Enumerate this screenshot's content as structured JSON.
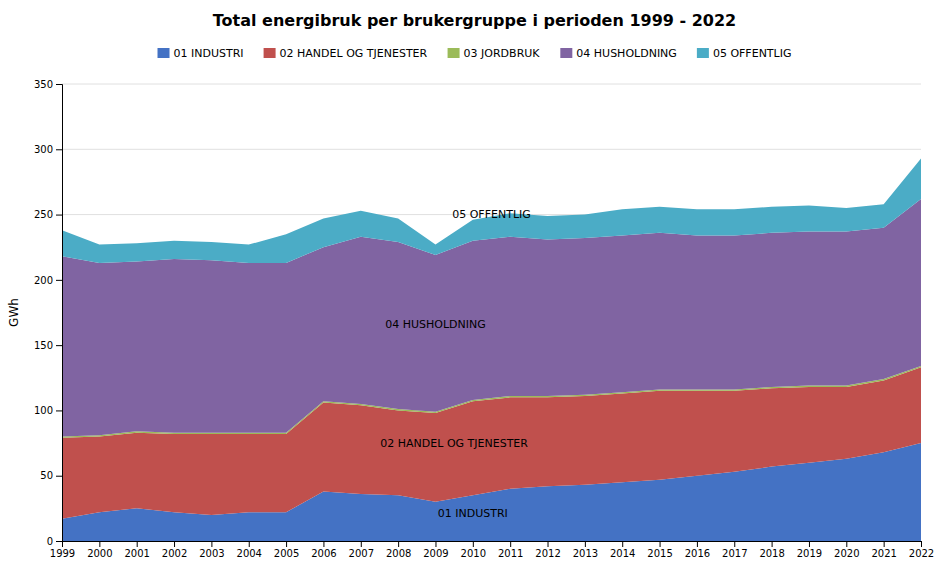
{
  "chart_data": {
    "type": "area",
    "stacked": true,
    "title": "Total energibruk per brukergruppe i perioden 1999 - 2022",
    "ylabel": "GWh",
    "x": [
      1999,
      2000,
      2001,
      2002,
      2003,
      2004,
      2005,
      2006,
      2007,
      2008,
      2009,
      2010,
      2011,
      2012,
      2013,
      2014,
      2015,
      2016,
      2017,
      2018,
      2019,
      2020,
      2021,
      2022
    ],
    "series": [
      {
        "name": "01 INDUSTRI",
        "color": "#4472C4",
        "values": [
          17,
          22,
          25,
          22,
          20,
          22,
          22,
          38,
          36,
          35,
          30,
          35,
          40,
          42,
          43,
          45,
          47,
          50,
          53,
          57,
          60,
          63,
          68,
          75
        ]
      },
      {
        "name": "02 HANDEL OG TJENESTER",
        "color": "#C0504D",
        "values": [
          62,
          58,
          58,
          60,
          62,
          60,
          60,
          68,
          68,
          65,
          68,
          72,
          70,
          68,
          68,
          68,
          68,
          65,
          62,
          60,
          58,
          55,
          55,
          58
        ]
      },
      {
        "name": "03 JORDBRUK",
        "color": "#9BBB59",
        "values": [
          1,
          1,
          1,
          1,
          1,
          1,
          1,
          1,
          1,
          1,
          1,
          1,
          1,
          1,
          1,
          1,
          1,
          1,
          1,
          1,
          1,
          1,
          1,
          1
        ]
      },
      {
        "name": "04 HUSHOLDNING",
        "color": "#8064A2",
        "values": [
          138,
          132,
          130,
          133,
          132,
          130,
          130,
          118,
          128,
          128,
          120,
          122,
          122,
          120,
          120,
          120,
          120,
          118,
          118,
          118,
          118,
          118,
          116,
          128
        ]
      },
      {
        "name": "05 OFFENTLIG",
        "color": "#4BACC6",
        "values": [
          20,
          14,
          14,
          14,
          14,
          14,
          22,
          22,
          20,
          18,
          8,
          16,
          18,
          18,
          18,
          20,
          20,
          20,
          20,
          20,
          20,
          18,
          18,
          31
        ]
      }
    ],
    "xlim": [
      1999,
      2022
    ],
    "xticks": [
      1999,
      2000,
      2001,
      2002,
      2003,
      2004,
      2005,
      2006,
      2007,
      2008,
      2009,
      2010,
      2011,
      2012,
      2013,
      2014,
      2015,
      2016,
      2017,
      2018,
      2019,
      2020,
      2021,
      2022
    ],
    "ylim": [
      0,
      350
    ],
    "yticks": [
      0,
      50,
      100,
      150,
      200,
      250,
      300,
      350
    ],
    "grid": true,
    "legend": "top",
    "annotations": [
      {
        "text": "01 INDUSTRI",
        "x": 2010,
        "y": 18
      },
      {
        "text": "02 HANDEL OG TJENESTER",
        "x": 2009.5,
        "y": 72
      },
      {
        "text": "04 HUSHOLDNING",
        "x": 2009,
        "y": 163
      },
      {
        "text": "05 OFFENTLIG",
        "x": 2010.5,
        "y": 247
      }
    ]
  }
}
